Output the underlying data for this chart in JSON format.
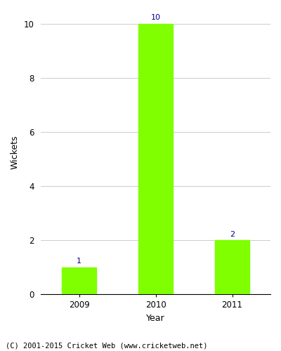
{
  "categories": [
    "2009",
    "2010",
    "2011"
  ],
  "values": [
    1,
    10,
    2
  ],
  "bar_color": "#7FFF00",
  "bar_edge_color": "#7FFF00",
  "xlabel": "Year",
  "ylabel": "Wickets",
  "ylim": [
    0,
    10.5
  ],
  "yticks": [
    0,
    2,
    4,
    6,
    8,
    10
  ],
  "annotation_color": "#00008B",
  "annotation_fontsize": 8,
  "axis_label_fontsize": 9,
  "tick_fontsize": 8.5,
  "footnote": "(C) 2001-2015 Cricket Web (www.cricketweb.net)",
  "footnote_fontsize": 7.5,
  "background_color": "#ffffff",
  "grid_color": "#cccccc",
  "bar_width": 0.45
}
